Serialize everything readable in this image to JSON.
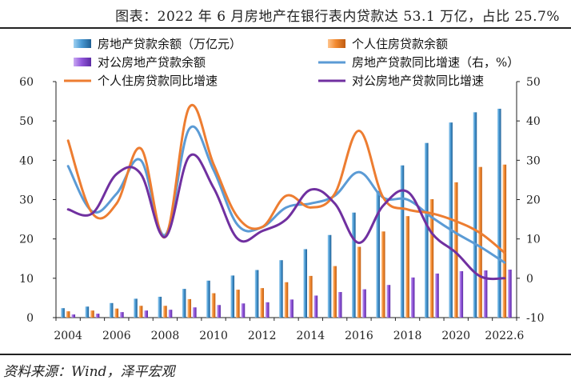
{
  "title": "图表：2022 年 6 月房地产在银行表内贷款达 53.1 万亿，占比 25.7%",
  "source": "资料来源：Wind，泽平宏观",
  "colors": {
    "bar_total": "#3f8fc8",
    "bar_personal": "#f08a2e",
    "bar_corporate": "#8b4fd2",
    "line_total": "#5b9bd5",
    "line_personal": "#ed7d31",
    "line_corporate": "#7030a0",
    "axis": "#222222"
  },
  "chart_data": {
    "type": "bar+line",
    "title": "图表：2022 年 6 月房地产在银行表内贷款达 53.1 万亿，占比 25.7%",
    "categories": [
      "2004",
      "2005",
      "2006",
      "2007",
      "2008",
      "2009",
      "2010",
      "2011",
      "2012",
      "2013",
      "2014",
      "2015",
      "2016",
      "2017",
      "2018",
      "2019",
      "2020",
      "2021",
      "2022.6"
    ],
    "x_tick_labels": [
      "2004",
      "2006",
      "2008",
      "2010",
      "2012",
      "2014",
      "2016",
      "2018",
      "2020",
      "2022.6"
    ],
    "y_left": {
      "min": 0,
      "max": 60,
      "ticks": [
        "0",
        "10",
        "20",
        "30",
        "40",
        "50",
        "60"
      ]
    },
    "y_right": {
      "min": -10,
      "max": 50,
      "ticks": [
        "-10",
        "0",
        "10",
        "20",
        "30",
        "40",
        "50"
      ]
    },
    "bar_series": [
      {
        "name": "房地产贷款余额（万亿元）",
        "values": [
          2.4,
          2.8,
          3.7,
          4.8,
          5.3,
          7.3,
          9.4,
          10.7,
          12.1,
          14.6,
          17.4,
          21.0,
          26.7,
          32.2,
          38.7,
          44.4,
          49.6,
          52.2,
          53.1
        ]
      },
      {
        "name": "个人住房贷款余额",
        "values": [
          1.6,
          1.8,
          2.3,
          3.0,
          3.0,
          4.7,
          6.2,
          7.1,
          7.5,
          9.0,
          10.6,
          13.1,
          18.0,
          21.9,
          25.8,
          30.1,
          34.4,
          38.3,
          38.9
        ]
      },
      {
        "name": "对公房地产贷款余额",
        "values": [
          0.8,
          1.0,
          1.4,
          1.8,
          2.0,
          2.6,
          3.2,
          3.6,
          3.9,
          4.6,
          5.6,
          6.5,
          7.2,
          8.3,
          10.2,
          11.2,
          11.8,
          12.0,
          12.2
        ]
      }
    ],
    "line_series": [
      {
        "name": "房地产贷款同比增速（右，%）",
        "axis": "right",
        "values": [
          28.5,
          17.0,
          21.5,
          30.0,
          11.0,
          38.0,
          27.5,
          13.5,
          13.0,
          18.0,
          19.0,
          21.0,
          27.0,
          20.5,
          20.0,
          15.5,
          11.5,
          8.0,
          4.0
        ]
      },
      {
        "name": "个人住房贷款同比增速",
        "axis": "right",
        "values": [
          35.0,
          16.5,
          19.0,
          33.0,
          10.5,
          43.5,
          29.0,
          15.5,
          13.0,
          21.0,
          18.0,
          21.5,
          37.5,
          20.5,
          17.5,
          16.5,
          14.5,
          11.5,
          6.5
        ]
      },
      {
        "name": "对公房地产贷款同比增速",
        "axis": "right",
        "values": [
          17.5,
          16.5,
          26.5,
          26.5,
          10.5,
          31.0,
          23.0,
          10.0,
          12.0,
          15.0,
          22.5,
          19.0,
          9.0,
          18.5,
          22.0,
          11.5,
          6.5,
          0.5,
          0.0
        ]
      }
    ],
    "legend": [
      "房地产贷款余额（万亿元）",
      "个人住房贷款余额",
      "对公房地产贷款余额",
      "房地产贷款同比增速（右，%）",
      "个人住房贷款同比增速",
      "对公房地产贷款同比增速"
    ],
    "legend_position": "top",
    "grid": false
  }
}
